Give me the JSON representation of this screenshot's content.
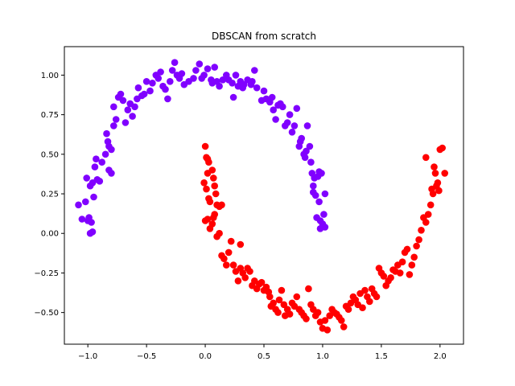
{
  "chart_data": {
    "type": "scatter",
    "title": "DBSCAN from scratch",
    "xlabel": "",
    "ylabel": "",
    "xlim": [
      -1.2,
      2.2
    ],
    "ylim": [
      -0.7,
      1.18
    ],
    "x_ticks": [
      -1.0,
      -0.5,
      0.0,
      0.5,
      1.0,
      1.5,
      2.0
    ],
    "x_tick_labels": [
      "−1.0",
      "−0.5",
      "0.0",
      "0.5",
      "1.0",
      "1.5",
      "2.0"
    ],
    "y_ticks": [
      -0.5,
      -0.25,
      0.0,
      0.25,
      0.5,
      0.75,
      1.0
    ],
    "y_tick_labels": [
      "−0.50",
      "−0.25",
      "0.00",
      "0.25",
      "0.50",
      "0.75",
      "1.00"
    ],
    "grid": false,
    "series": [
      {
        "color": "#8000ff",
        "points": [
          [
            -1.08,
            0.18
          ],
          [
            -1.05,
            0.09
          ],
          [
            -1.02,
            0.2
          ],
          [
            -1.0,
            0.08
          ],
          [
            -0.99,
            0.1
          ],
          [
            -0.98,
            0.0
          ],
          [
            -0.96,
            0.01
          ],
          [
            -0.97,
            0.07
          ],
          [
            -1.01,
            0.35
          ],
          [
            -0.98,
            0.3
          ],
          [
            -0.96,
            0.32
          ],
          [
            -0.95,
            0.23
          ],
          [
            -0.94,
            0.42
          ],
          [
            -0.93,
            0.47
          ],
          [
            -0.92,
            0.34
          ],
          [
            -0.9,
            0.33
          ],
          [
            -0.88,
            0.45
          ],
          [
            -0.85,
            0.5
          ],
          [
            -0.83,
            0.58
          ],
          [
            -0.84,
            0.63
          ],
          [
            -0.82,
            0.55
          ],
          [
            -0.8,
            0.53
          ],
          [
            -0.82,
            0.4
          ],
          [
            -0.8,
            0.38
          ],
          [
            -0.78,
            0.68
          ],
          [
            -0.76,
            0.72
          ],
          [
            -0.78,
            0.8
          ],
          [
            -0.74,
            0.86
          ],
          [
            -0.72,
            0.88
          ],
          [
            -0.7,
            0.84
          ],
          [
            -0.68,
            0.7
          ],
          [
            -0.66,
            0.78
          ],
          [
            -0.64,
            0.82
          ],
          [
            -0.62,
            0.74
          ],
          [
            -0.6,
            0.8
          ],
          [
            -0.58,
            0.85
          ],
          [
            -0.57,
            0.92
          ],
          [
            -0.54,
            0.87
          ],
          [
            -0.52,
            0.88
          ],
          [
            -0.5,
            0.96
          ],
          [
            -0.47,
            0.9
          ],
          [
            -0.45,
            0.95
          ],
          [
            -0.42,
            1.0
          ],
          [
            -0.4,
            0.98
          ],
          [
            -0.38,
            1.02
          ],
          [
            -0.36,
            0.93
          ],
          [
            -0.34,
            0.91
          ],
          [
            -0.32,
            0.85
          ],
          [
            -0.3,
            0.96
          ],
          [
            -0.28,
            1.03
          ],
          [
            -0.26,
            1.08
          ],
          [
            -0.24,
            1.0
          ],
          [
            -0.22,
            0.98
          ],
          [
            -0.2,
            1.01
          ],
          [
            -0.18,
            0.94
          ],
          [
            -0.14,
            0.96
          ],
          [
            -0.1,
            0.98
          ],
          [
            -0.08,
            1.03
          ],
          [
            -0.05,
            1.07
          ],
          [
            -0.03,
            0.98
          ],
          [
            -0.01,
            1.0
          ],
          [
            0.02,
            1.04
          ],
          [
            0.05,
            0.97
          ],
          [
            0.06,
            0.95
          ],
          [
            0.08,
            1.05
          ],
          [
            0.1,
            0.96
          ],
          [
            0.12,
            0.93
          ],
          [
            0.15,
            0.97
          ],
          [
            0.18,
            1.0
          ],
          [
            0.2,
            0.97
          ],
          [
            0.23,
            0.95
          ],
          [
            0.24,
            0.86
          ],
          [
            0.26,
            1.0
          ],
          [
            0.28,
            0.93
          ],
          [
            0.3,
            0.96
          ],
          [
            0.32,
            0.92
          ],
          [
            0.33,
            0.94
          ],
          [
            0.36,
            0.97
          ],
          [
            0.39,
            0.94
          ],
          [
            0.4,
            0.96
          ],
          [
            0.42,
            1.03
          ],
          [
            0.44,
            0.92
          ],
          [
            0.48,
            0.84
          ],
          [
            0.5,
            0.9
          ],
          [
            0.52,
            0.85
          ],
          [
            0.55,
            0.83
          ],
          [
            0.57,
            0.86
          ],
          [
            0.58,
            0.78
          ],
          [
            0.6,
            0.72
          ],
          [
            0.62,
            0.81
          ],
          [
            0.64,
            0.82
          ],
          [
            0.66,
            0.8
          ],
          [
            0.68,
            0.68
          ],
          [
            0.7,
            0.7
          ],
          [
            0.72,
            0.75
          ],
          [
            0.74,
            0.64
          ],
          [
            0.76,
            0.68
          ],
          [
            0.78,
            0.79
          ],
          [
            0.8,
            0.55
          ],
          [
            0.81,
            0.58
          ],
          [
            0.82,
            0.6
          ],
          [
            0.84,
            0.5
          ],
          [
            0.85,
            0.48
          ],
          [
            0.86,
            0.52
          ],
          [
            0.87,
            0.68
          ],
          [
            0.89,
            0.55
          ],
          [
            0.9,
            0.45
          ],
          [
            0.91,
            0.38
          ],
          [
            0.92,
            0.3
          ],
          [
            0.92,
            0.26
          ],
          [
            0.93,
            0.35
          ],
          [
            0.94,
            0.24
          ],
          [
            0.95,
            0.1
          ],
          [
            0.96,
            0.36
          ],
          [
            0.97,
            0.2
          ],
          [
            0.98,
            0.08
          ],
          [
            0.98,
            0.03
          ],
          [
            0.99,
            0.38
          ],
          [
            1.0,
            0.06
          ],
          [
            1.01,
            0.12
          ],
          [
            1.02,
            0.04
          ],
          [
            1.02,
            0.25
          ],
          [
            0.97,
            0.39
          ]
        ]
      },
      {
        "color": "#ff0000",
        "points": [
          [
            0.0,
            0.55
          ],
          [
            0.01,
            0.48
          ],
          [
            0.02,
            0.47
          ],
          [
            0.03,
            0.45
          ],
          [
            -0.01,
            0.32
          ],
          [
            0.01,
            0.28
          ],
          [
            0.02,
            0.38
          ],
          [
            0.03,
            0.22
          ],
          [
            0.04,
            0.2
          ],
          [
            0.06,
            0.4
          ],
          [
            0.07,
            0.35
          ],
          [
            0.08,
            0.3
          ],
          [
            0.09,
            0.25
          ],
          [
            0.1,
            0.18
          ],
          [
            0.12,
            0.17
          ],
          [
            0.14,
            0.18
          ],
          [
            0.0,
            0.08
          ],
          [
            0.02,
            0.09
          ],
          [
            0.04,
            0.03
          ],
          [
            0.06,
            0.06
          ],
          [
            0.07,
            0.1
          ],
          [
            0.08,
            0.12
          ],
          [
            0.1,
            -0.02
          ],
          [
            0.12,
            0.0
          ],
          [
            0.14,
            -0.14
          ],
          [
            0.16,
            -0.16
          ],
          [
            0.18,
            -0.2
          ],
          [
            0.2,
            -0.12
          ],
          [
            0.22,
            -0.05
          ],
          [
            0.24,
            -0.2
          ],
          [
            0.26,
            -0.24
          ],
          [
            0.28,
            -0.3
          ],
          [
            0.3,
            -0.07
          ],
          [
            0.3,
            -0.22
          ],
          [
            0.32,
            -0.25
          ],
          [
            0.34,
            -0.28
          ],
          [
            0.36,
            -0.22
          ],
          [
            0.38,
            -0.24
          ],
          [
            0.4,
            -0.33
          ],
          [
            0.42,
            -0.3
          ],
          [
            0.44,
            -0.35
          ],
          [
            0.46,
            -0.32
          ],
          [
            0.48,
            -0.31
          ],
          [
            0.5,
            -0.36
          ],
          [
            0.52,
            -0.34
          ],
          [
            0.54,
            -0.37
          ],
          [
            0.55,
            -0.4
          ],
          [
            0.56,
            -0.46
          ],
          [
            0.58,
            -0.44
          ],
          [
            0.6,
            -0.48
          ],
          [
            0.62,
            -0.5
          ],
          [
            0.63,
            -0.42
          ],
          [
            0.65,
            -0.36
          ],
          [
            0.67,
            -0.45
          ],
          [
            0.68,
            -0.52
          ],
          [
            0.7,
            -0.48
          ],
          [
            0.72,
            -0.51
          ],
          [
            0.74,
            -0.44
          ],
          [
            0.76,
            -0.46
          ],
          [
            0.78,
            -0.4
          ],
          [
            0.8,
            -0.48
          ],
          [
            0.82,
            -0.5
          ],
          [
            0.84,
            -0.52
          ],
          [
            0.86,
            -0.54
          ],
          [
            0.88,
            -0.35
          ],
          [
            0.9,
            -0.45
          ],
          [
            0.92,
            -0.48
          ],
          [
            0.94,
            -0.52
          ],
          [
            0.96,
            -0.5
          ],
          [
            0.98,
            -0.56
          ],
          [
            1.0,
            -0.6
          ],
          [
            1.02,
            -0.55
          ],
          [
            1.04,
            -0.61
          ],
          [
            1.06,
            -0.52
          ],
          [
            1.08,
            -0.48
          ],
          [
            1.1,
            -0.5
          ],
          [
            1.12,
            -0.51
          ],
          [
            1.14,
            -0.53
          ],
          [
            1.16,
            -0.55
          ],
          [
            1.18,
            -0.59
          ],
          [
            1.2,
            -0.46
          ],
          [
            1.22,
            -0.48
          ],
          [
            1.24,
            -0.44
          ],
          [
            1.26,
            -0.4
          ],
          [
            1.28,
            -0.42
          ],
          [
            1.3,
            -0.45
          ],
          [
            1.32,
            -0.38
          ],
          [
            1.34,
            -0.47
          ],
          [
            1.36,
            -0.36
          ],
          [
            1.38,
            -0.4
          ],
          [
            1.4,
            -0.43
          ],
          [
            1.42,
            -0.35
          ],
          [
            1.44,
            -0.38
          ],
          [
            1.46,
            -0.4
          ],
          [
            1.48,
            -0.22
          ],
          [
            1.5,
            -0.25
          ],
          [
            1.52,
            -0.27
          ],
          [
            1.54,
            -0.33
          ],
          [
            1.56,
            -0.3
          ],
          [
            1.58,
            -0.28
          ],
          [
            1.6,
            -0.23
          ],
          [
            1.62,
            -0.24
          ],
          [
            1.64,
            -0.2
          ],
          [
            1.66,
            -0.25
          ],
          [
            1.68,
            -0.18
          ],
          [
            1.7,
            -0.12
          ],
          [
            1.72,
            -0.1
          ],
          [
            1.74,
            -0.26
          ],
          [
            1.76,
            -0.2
          ],
          [
            1.78,
            -0.15
          ],
          [
            1.8,
            -0.08
          ],
          [
            1.82,
            -0.04
          ],
          [
            1.84,
            0.02
          ],
          [
            1.86,
            0.1
          ],
          [
            1.88,
            0.07
          ],
          [
            1.9,
            0.12
          ],
          [
            1.92,
            0.18
          ],
          [
            1.93,
            0.28
          ],
          [
            1.94,
            0.25
          ],
          [
            1.95,
            0.42
          ],
          [
            1.96,
            0.38
          ],
          [
            1.97,
            0.3
          ],
          [
            1.98,
            0.32
          ],
          [
            1.99,
            0.27
          ],
          [
            2.0,
            0.53
          ],
          [
            2.02,
            0.54
          ],
          [
            2.04,
            0.38
          ],
          [
            1.88,
            0.48
          ]
        ]
      }
    ]
  }
}
